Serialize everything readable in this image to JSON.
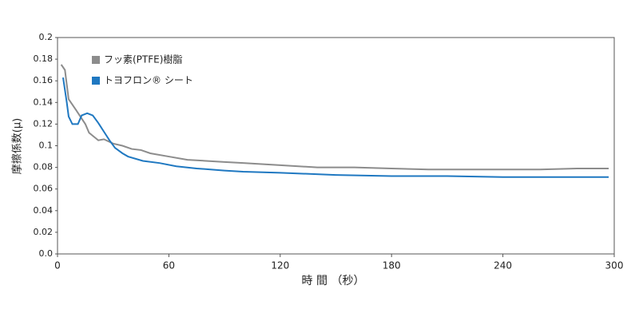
{
  "chart_data": {
    "type": "line",
    "x_label": "時 間 （秒）",
    "y_label": "摩擦係数(μ)",
    "xlim": [
      0,
      300
    ],
    "xticks": [
      0,
      60,
      120,
      180,
      240,
      300
    ],
    "ylim": [
      0,
      0.2
    ],
    "yticks": [
      {
        "value": 0,
        "label": "0.0"
      },
      0.02,
      0.04,
      0.06,
      0.08,
      0.1,
      0.12,
      0.14,
      0.16,
      0.18,
      0.2
    ],
    "legend": "upper-left",
    "series": [
      {
        "name": "フッ素(PTFE)樹脂",
        "color": "#8c8c8c",
        "x": [
          2,
          4,
          6,
          10,
          15,
          17,
          22,
          25,
          30,
          35,
          40,
          45,
          50,
          60,
          70,
          80,
          90,
          100,
          120,
          140,
          160,
          180,
          200,
          220,
          240,
          260,
          280,
          297
        ],
        "values": [
          0.175,
          0.17,
          0.143,
          0.133,
          0.12,
          0.112,
          0.105,
          0.106,
          0.102,
          0.1,
          0.097,
          0.096,
          0.093,
          0.09,
          0.087,
          0.086,
          0.085,
          0.084,
          0.082,
          0.08,
          0.08,
          0.079,
          0.078,
          0.078,
          0.078,
          0.078,
          0.079,
          0.079
        ]
      },
      {
        "name": "トヨフロン® シート",
        "color": "#1f78c1",
        "x": [
          3,
          5,
          6,
          8,
          11,
          13,
          16,
          19,
          22,
          25,
          28,
          31,
          35,
          38,
          46,
          55,
          64,
          75,
          90,
          100,
          120,
          150,
          180,
          210,
          240,
          270,
          297
        ],
        "values": [
          0.163,
          0.14,
          0.127,
          0.12,
          0.12,
          0.128,
          0.13,
          0.128,
          0.121,
          0.113,
          0.105,
          0.098,
          0.093,
          0.09,
          0.086,
          0.084,
          0.081,
          0.079,
          0.077,
          0.076,
          0.075,
          0.073,
          0.072,
          0.072,
          0.071,
          0.071,
          0.071
        ]
      }
    ]
  }
}
